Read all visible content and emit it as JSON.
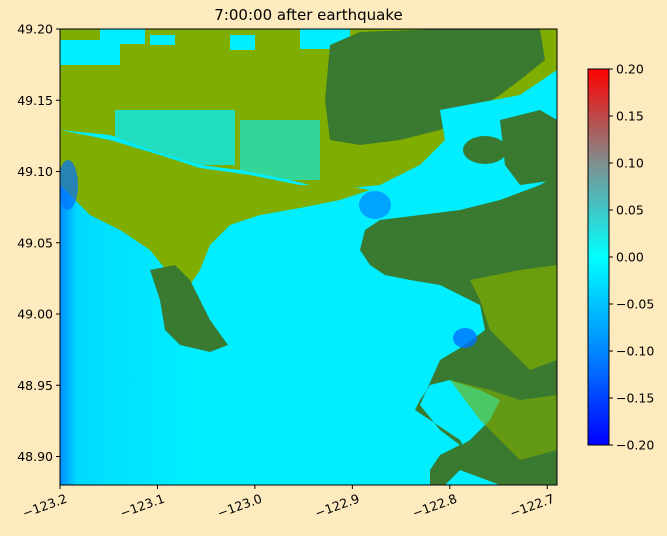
{
  "chart_data": {
    "type": "heatmap",
    "title": "7:00:00 after earthquake",
    "xlabel": "",
    "ylabel": "",
    "xlim": [
      -123.2,
      -122.69
    ],
    "ylim": [
      48.88,
      49.2
    ],
    "x_ticks": [
      -123.2,
      -123.1,
      -123.0,
      -122.9,
      -122.8,
      -122.7
    ],
    "x_tick_labels": [
      "−123.2",
      "−123.1",
      "−123.0",
      "−122.9",
      "−122.8",
      "−122.7"
    ],
    "y_ticks": [
      48.9,
      48.95,
      49.0,
      49.05,
      49.1,
      49.15,
      49.2
    ],
    "y_tick_labels": [
      "48.90",
      "48.95",
      "49.00",
      "49.05",
      "49.10",
      "49.15",
      "49.20"
    ],
    "colorbar": {
      "range": [
        -0.2,
        0.2
      ],
      "ticks": [
        -0.2,
        -0.15,
        -0.1,
        -0.05,
        0.0,
        0.05,
        0.1,
        0.15,
        0.2
      ],
      "tick_labels": [
        "−0.20",
        "−0.15",
        "−0.10",
        "−0.05",
        "0.00",
        "0.05",
        "0.10",
        "0.15",
        "0.20"
      ],
      "colors": [
        "#0000ff",
        "#00ffff",
        "#ff0000"
      ]
    },
    "grid": false,
    "colors": {
      "land_dark": "#3a7a30",
      "land_light": "#7fae00",
      "water_zero": "#00eeff",
      "water_negative": "#0077ff",
      "background": "#fdebbf"
    }
  }
}
